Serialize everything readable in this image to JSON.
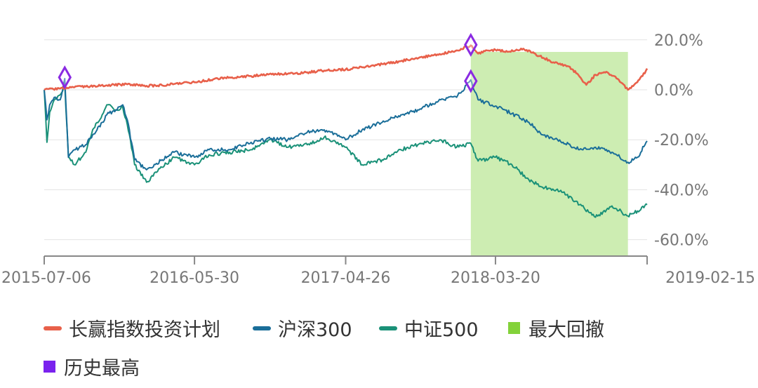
{
  "chart_data": {
    "type": "line",
    "x_ticks": [
      "2015-07-06",
      "2016-05-30",
      "2017-04-26",
      "2018-03-20",
      "2019-02-15"
    ],
    "x_range": [
      "2015-07-06",
      "2019-02-15"
    ],
    "y_ticks": [
      "20.0%",
      "0.0%",
      "-20.0%",
      "-40.0%",
      "-60.0%"
    ],
    "y_tick_values": [
      20,
      0,
      -20,
      -40,
      -60
    ],
    "ylim": [
      -66,
      24
    ],
    "y_unit": "%",
    "grid": true,
    "legend_position": "bottom",
    "series": [
      {
        "name": "长赢指数投资计划",
        "color": "#e8604a",
        "points": [
          [
            "2015-07-06",
            0.0
          ],
          [
            "2015-08-10",
            0.5
          ],
          [
            "2015-09-10",
            1.0
          ],
          [
            "2015-10-15",
            1.4
          ],
          [
            "2015-11-20",
            1.8
          ],
          [
            "2016-01-04",
            2.2
          ],
          [
            "2016-02-15",
            1.6
          ],
          [
            "2016-03-20",
            1.8
          ],
          [
            "2016-04-20",
            2.6
          ],
          [
            "2016-05-30",
            3.0
          ],
          [
            "2016-07-10",
            4.2
          ],
          [
            "2016-08-20",
            5.0
          ],
          [
            "2016-10-01",
            5.5
          ],
          [
            "2016-11-10",
            6.3
          ],
          [
            "2016-12-20",
            6.4
          ],
          [
            "2017-02-01",
            7.0
          ],
          [
            "2017-03-10",
            7.7
          ],
          [
            "2017-04-26",
            8.2
          ],
          [
            "2017-06-01",
            9.0
          ],
          [
            "2017-07-15",
            10.3
          ],
          [
            "2017-08-25",
            11.5
          ],
          [
            "2017-10-05",
            13.0
          ],
          [
            "2017-11-15",
            14.0
          ],
          [
            "2017-12-25",
            15.8
          ],
          [
            "2018-01-25",
            17.8
          ],
          [
            "2018-02-10",
            14.5
          ],
          [
            "2018-02-25",
            15.5
          ],
          [
            "2018-03-20",
            16.0
          ],
          [
            "2018-04-20",
            15.3
          ],
          [
            "2018-05-20",
            16.5
          ],
          [
            "2018-06-25",
            13.5
          ],
          [
            "2018-07-25",
            11.0
          ],
          [
            "2018-08-25",
            9.5
          ],
          [
            "2018-09-15",
            6.5
          ],
          [
            "2018-10-05",
            2.0
          ],
          [
            "2018-10-25",
            6.0
          ],
          [
            "2018-11-20",
            7.0
          ],
          [
            "2018-12-15",
            4.0
          ],
          [
            "2019-01-04",
            0.0
          ],
          [
            "2019-01-20",
            2.5
          ],
          [
            "2019-02-05",
            5.5
          ],
          [
            "2019-02-15",
            8.5
          ]
        ]
      },
      {
        "name": "沪深300",
        "color": "#1a6e99",
        "points": [
          [
            "2015-07-06",
            0.0
          ],
          [
            "2015-07-12",
            -12.0
          ],
          [
            "2015-07-18",
            -6.0
          ],
          [
            "2015-07-28",
            -3.0
          ],
          [
            "2015-08-10",
            -4.0
          ],
          [
            "2015-08-20",
            4.5
          ],
          [
            "2015-08-28",
            -27.0
          ],
          [
            "2015-09-10",
            -24.0
          ],
          [
            "2015-10-05",
            -22.0
          ],
          [
            "2015-10-20",
            -18.0
          ],
          [
            "2015-11-10",
            -13.0
          ],
          [
            "2015-11-20",
            -10.0
          ],
          [
            "2015-12-10",
            -8.0
          ],
          [
            "2015-12-25",
            -6.0
          ],
          [
            "2016-01-04",
            -12.0
          ],
          [
            "2016-01-20",
            -28.0
          ],
          [
            "2016-02-15",
            -32.0
          ],
          [
            "2016-03-20",
            -28.0
          ],
          [
            "2016-04-15",
            -25.0
          ],
          [
            "2016-05-30",
            -27.0
          ],
          [
            "2016-07-01",
            -24.0
          ],
          [
            "2016-08-15",
            -24.0
          ],
          [
            "2016-10-01",
            -21.0
          ],
          [
            "2016-11-15",
            -19.5
          ],
          [
            "2016-12-20",
            -20.0
          ],
          [
            "2017-02-01",
            -17.0
          ],
          [
            "2017-03-10",
            -16.0
          ],
          [
            "2017-04-26",
            -20.0
          ],
          [
            "2017-06-01",
            -16.0
          ],
          [
            "2017-07-15",
            -13.0
          ],
          [
            "2017-08-25",
            -10.0
          ],
          [
            "2017-10-01",
            -8.0
          ],
          [
            "2017-11-20",
            -4.0
          ],
          [
            "2017-12-25",
            -3.0
          ],
          [
            "2018-01-25",
            4.0
          ],
          [
            "2018-02-10",
            -4.0
          ],
          [
            "2018-03-20",
            -6.5
          ],
          [
            "2018-04-25",
            -9.5
          ],
          [
            "2018-06-01",
            -13.0
          ],
          [
            "2018-07-01",
            -18.0
          ],
          [
            "2018-08-15",
            -21.0
          ],
          [
            "2018-09-20",
            -24.0
          ],
          [
            "2018-10-25",
            -23.0
          ],
          [
            "2018-11-30",
            -25.0
          ],
          [
            "2019-01-04",
            -29.0
          ],
          [
            "2019-01-25",
            -27.0
          ],
          [
            "2019-02-15",
            -20.5
          ]
        ]
      },
      {
        "name": "中证500",
        "color": "#1a9178",
        "points": [
          [
            "2015-07-06",
            0.0
          ],
          [
            "2015-07-12",
            -21.0
          ],
          [
            "2015-07-18",
            -9.0
          ],
          [
            "2015-07-28",
            -4.0
          ],
          [
            "2015-08-10",
            -2.0
          ],
          [
            "2015-08-20",
            2.0
          ],
          [
            "2015-08-28",
            -27.0
          ],
          [
            "2015-09-10",
            -30.0
          ],
          [
            "2015-10-05",
            -25.0
          ],
          [
            "2015-10-20",
            -16.0
          ],
          [
            "2015-11-10",
            -10.0
          ],
          [
            "2015-11-20",
            -6.0
          ],
          [
            "2015-12-10",
            -8.0
          ],
          [
            "2015-12-25",
            -7.0
          ],
          [
            "2016-01-04",
            -14.0
          ],
          [
            "2016-01-20",
            -30.0
          ],
          [
            "2016-02-15",
            -37.0
          ],
          [
            "2016-03-20",
            -31.0
          ],
          [
            "2016-04-15",
            -27.0
          ],
          [
            "2016-05-30",
            -30.0
          ],
          [
            "2016-07-01",
            -26.0
          ],
          [
            "2016-08-15",
            -25.0
          ],
          [
            "2016-10-01",
            -24.0
          ],
          [
            "2016-11-15",
            -20.0
          ],
          [
            "2016-12-20",
            -23.0
          ],
          [
            "2017-02-01",
            -22.0
          ],
          [
            "2017-03-10",
            -19.0
          ],
          [
            "2017-04-26",
            -23.0
          ],
          [
            "2017-06-01",
            -30.0
          ],
          [
            "2017-07-15",
            -28.0
          ],
          [
            "2017-08-25",
            -24.0
          ],
          [
            "2017-10-01",
            -22.0
          ],
          [
            "2017-11-20",
            -20.0
          ],
          [
            "2017-12-25",
            -23.0
          ],
          [
            "2018-01-25",
            -21.5
          ],
          [
            "2018-02-10",
            -28.5
          ],
          [
            "2018-03-20",
            -27.0
          ],
          [
            "2018-04-25",
            -30.0
          ],
          [
            "2018-06-01",
            -36.0
          ],
          [
            "2018-07-01",
            -39.0
          ],
          [
            "2018-08-15",
            -41.0
          ],
          [
            "2018-09-20",
            -46.0
          ],
          [
            "2018-10-25",
            -51.0
          ],
          [
            "2018-11-30",
            -46.5
          ],
          [
            "2019-01-04",
            -50.5
          ],
          [
            "2019-01-25",
            -48.5
          ],
          [
            "2019-02-15",
            -46.0
          ]
        ]
      }
    ],
    "drawdown_band": {
      "name": "最大回撤",
      "color": "#cdedb2",
      "legend_color": "#83d23a",
      "x_start": "2018-01-25",
      "x_end": "2019-01-04"
    },
    "peaks": {
      "name": "历史最高",
      "color": "#8a2be2",
      "points": [
        [
          "2015-08-20",
          5.0
        ],
        [
          "2018-01-25",
          18.0
        ],
        [
          "2018-01-25",
          3.5
        ]
      ]
    },
    "legend": [
      {
        "name": "长赢指数投资计划",
        "color": "#e8604a",
        "marker": "line"
      },
      {
        "name": "沪深300",
        "color": "#1a6e99",
        "marker": "line"
      },
      {
        "name": "中证500",
        "color": "#1a9178",
        "marker": "line"
      },
      {
        "name": "最大回撤",
        "color": "#83d23a",
        "marker": "square"
      },
      {
        "name": "历史最高",
        "color": "#7a22ee",
        "marker": "square"
      }
    ]
  }
}
